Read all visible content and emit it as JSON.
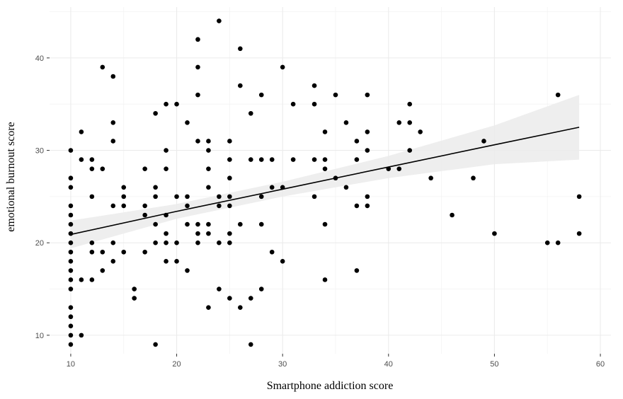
{
  "chart_data": {
    "type": "scatter",
    "title": "",
    "xlabel": "Smartphone addiction score",
    "ylabel": "emotional burnout score",
    "xlim": [
      8,
      61
    ],
    "ylim": [
      8,
      45.5
    ],
    "x_ticks": [
      10,
      20,
      30,
      40,
      50,
      60
    ],
    "y_ticks": [
      10,
      20,
      30,
      40
    ],
    "grid": true,
    "legend": "none",
    "colors": {
      "point": "#000000",
      "line": "#000000",
      "band": "#ebebeb",
      "grid_major": "#ebebeb",
      "grid_minor": "#f3f3f3",
      "panel": "#ffffff"
    },
    "trendline": {
      "x": [
        10,
        20,
        30,
        40,
        50,
        58
      ],
      "y": [
        20.9,
        23.4,
        25.8,
        28.2,
        30.6,
        32.5
      ],
      "ci_upper": [
        22.4,
        24.2,
        26.6,
        29.4,
        32.7,
        36.0
      ],
      "ci_lower": [
        19.4,
        22.6,
        25.0,
        27.0,
        28.5,
        29.0
      ]
    },
    "series": [
      {
        "points": [
          [
            10,
            30
          ],
          [
            10,
            27
          ],
          [
            10,
            26
          ],
          [
            10,
            24
          ],
          [
            10,
            23
          ],
          [
            10,
            22
          ],
          [
            10,
            21
          ],
          [
            10,
            20
          ],
          [
            10,
            19
          ],
          [
            10,
            18
          ],
          [
            10,
            17
          ],
          [
            10,
            16
          ],
          [
            10,
            15
          ],
          [
            10,
            13
          ],
          [
            10,
            12
          ],
          [
            10,
            11
          ],
          [
            10,
            10
          ],
          [
            10,
            9
          ],
          [
            11,
            32
          ],
          [
            11,
            29
          ],
          [
            11,
            16
          ],
          [
            11,
            10
          ],
          [
            12,
            29
          ],
          [
            12,
            28
          ],
          [
            12,
            25
          ],
          [
            12,
            20
          ],
          [
            12,
            19
          ],
          [
            12,
            16
          ],
          [
            13,
            39
          ],
          [
            13,
            28
          ],
          [
            13,
            19
          ],
          [
            13,
            17
          ],
          [
            14,
            38
          ],
          [
            14,
            33
          ],
          [
            14,
            31
          ],
          [
            14,
            24
          ],
          [
            14,
            20
          ],
          [
            14,
            18
          ],
          [
            15,
            26
          ],
          [
            15,
            25
          ],
          [
            15,
            24
          ],
          [
            15,
            19
          ],
          [
            16,
            15
          ],
          [
            16,
            14
          ],
          [
            17,
            28
          ],
          [
            17,
            24
          ],
          [
            17,
            23
          ],
          [
            17,
            19
          ],
          [
            18,
            34
          ],
          [
            18,
            26
          ],
          [
            18,
            25
          ],
          [
            18,
            22
          ],
          [
            18,
            20
          ],
          [
            18,
            9
          ],
          [
            19,
            35
          ],
          [
            19,
            30
          ],
          [
            19,
            28
          ],
          [
            19,
            23
          ],
          [
            19,
            21
          ],
          [
            19,
            20
          ],
          [
            19,
            18
          ],
          [
            20,
            35
          ],
          [
            20,
            25
          ],
          [
            20,
            20
          ],
          [
            20,
            18
          ],
          [
            21,
            33
          ],
          [
            21,
            25
          ],
          [
            21,
            24
          ],
          [
            21,
            22
          ],
          [
            21,
            17
          ],
          [
            22,
            42
          ],
          [
            22,
            39
          ],
          [
            22,
            36
          ],
          [
            22,
            31
          ],
          [
            22,
            22
          ],
          [
            22,
            21
          ],
          [
            22,
            20
          ],
          [
            23,
            31
          ],
          [
            23,
            30
          ],
          [
            23,
            28
          ],
          [
            23,
            26
          ],
          [
            23,
            22
          ],
          [
            23,
            21
          ],
          [
            23,
            13
          ],
          [
            24,
            44
          ],
          [
            24,
            25
          ],
          [
            24,
            24
          ],
          [
            24,
            20
          ],
          [
            24,
            15
          ],
          [
            25,
            31
          ],
          [
            25,
            29
          ],
          [
            25,
            27
          ],
          [
            25,
            25
          ],
          [
            25,
            24
          ],
          [
            25,
            21
          ],
          [
            25,
            20
          ],
          [
            25,
            14
          ],
          [
            26,
            41
          ],
          [
            26,
            37
          ],
          [
            26,
            22
          ],
          [
            26,
            13
          ],
          [
            27,
            34
          ],
          [
            27,
            29
          ],
          [
            27,
            14
          ],
          [
            27,
            9
          ],
          [
            28,
            36
          ],
          [
            28,
            29
          ],
          [
            28,
            25
          ],
          [
            28,
            22
          ],
          [
            28,
            15
          ],
          [
            29,
            29
          ],
          [
            29,
            26
          ],
          [
            29,
            19
          ],
          [
            30,
            39
          ],
          [
            30,
            26
          ],
          [
            30,
            18
          ],
          [
            31,
            35
          ],
          [
            31,
            29
          ],
          [
            33,
            37
          ],
          [
            33,
            35
          ],
          [
            33,
            29
          ],
          [
            33,
            25
          ],
          [
            34,
            32
          ],
          [
            34,
            29
          ],
          [
            34,
            28
          ],
          [
            34,
            22
          ],
          [
            34,
            16
          ],
          [
            35,
            36
          ],
          [
            35,
            27
          ],
          [
            36,
            33
          ],
          [
            36,
            26
          ],
          [
            37,
            31
          ],
          [
            37,
            29
          ],
          [
            37,
            24
          ],
          [
            37,
            17
          ],
          [
            38,
            36
          ],
          [
            38,
            32
          ],
          [
            38,
            30
          ],
          [
            38,
            25
          ],
          [
            38,
            24
          ],
          [
            40,
            28
          ],
          [
            41,
            33
          ],
          [
            41,
            28
          ],
          [
            42,
            35
          ],
          [
            42,
            33
          ],
          [
            42,
            30
          ],
          [
            43,
            32
          ],
          [
            44,
            27
          ],
          [
            46,
            23
          ],
          [
            48,
            27
          ],
          [
            49,
            31
          ],
          [
            50,
            21
          ],
          [
            55,
            20
          ],
          [
            56,
            36
          ],
          [
            56,
            20
          ],
          [
            58,
            25
          ],
          [
            58,
            21
          ]
        ]
      }
    ]
  }
}
